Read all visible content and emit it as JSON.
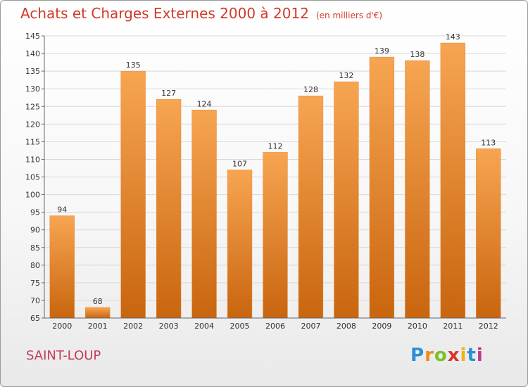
{
  "title": "Achats et Charges Externes 2000 à 2012",
  "unit": "(en milliers d'€)",
  "place": "SAINT-LOUP",
  "logo": {
    "letters": [
      "P",
      "r",
      "o",
      "x",
      "i",
      "t",
      "i"
    ],
    "colors": [
      "#2a8fd8",
      "#f08a1a",
      "#7bbf2a",
      "#d8342a",
      "#f0b21a",
      "#2a8fd8",
      "#c0398a"
    ]
  },
  "colors": {
    "bar_top": "#f7a552",
    "bar_bottom": "#c9650f",
    "grid": "#d9d9d9"
  },
  "chart_data": {
    "type": "bar",
    "title": "Achats et Charges Externes 2000 à 2012",
    "subtitle": "(en milliers d'€)",
    "categories": [
      "2000",
      "2001",
      "2002",
      "2003",
      "2004",
      "2005",
      "2006",
      "2007",
      "2008",
      "2009",
      "2010",
      "2011",
      "2012"
    ],
    "values": [
      94,
      68,
      135,
      127,
      124,
      107,
      112,
      128,
      132,
      139,
      138,
      143,
      113
    ],
    "ylim": [
      65,
      145
    ],
    "yticks": [
      65,
      70,
      75,
      80,
      85,
      90,
      95,
      100,
      105,
      110,
      115,
      120,
      125,
      130,
      135,
      140,
      145
    ],
    "grid": true,
    "data_labels": true
  }
}
